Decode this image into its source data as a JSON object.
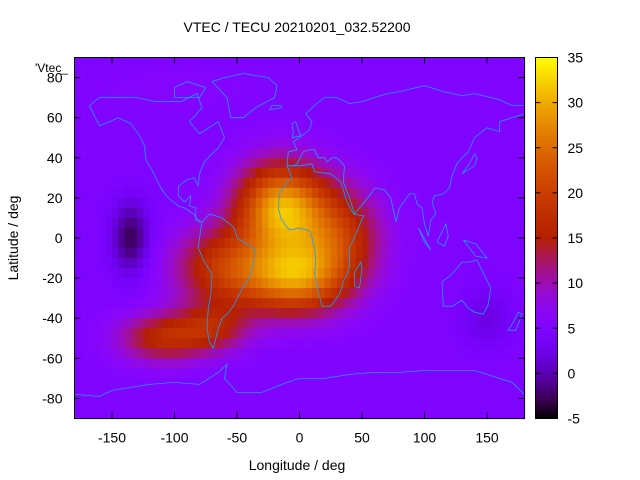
{
  "chart_data": {
    "type": "heatmap",
    "title": "VTEC / TECU 20210201_032.52200",
    "xlabel": "Longitude / deg",
    "ylabel": "Latitude / deg",
    "xlim": [
      -180,
      180
    ],
    "ylim": [
      -90,
      90
    ],
    "xticks": [
      "-150",
      "-100",
      "-50",
      "0",
      "50",
      "100",
      "150"
    ],
    "yticks": [
      "-80",
      "-60",
      "-40",
      "-20",
      "0",
      "20",
      "40",
      "60",
      "80"
    ],
    "colorbar": {
      "range": [
        -5,
        35
      ],
      "ticks": [
        "-5",
        "0",
        "5",
        "10",
        "15",
        "20",
        "25",
        "30",
        "35"
      ]
    },
    "legend_key": "'Vtec_",
    "background_level": 5,
    "features": [
      {
        "lon": -15,
        "lat": 15,
        "amp": 24,
        "slon": 35,
        "slat": 22
      },
      {
        "lon": -5,
        "lat": -20,
        "amp": 20,
        "slon": 40,
        "slat": 18
      },
      {
        "lon": -60,
        "lat": -15,
        "amp": 13,
        "slon": 40,
        "slat": 20
      },
      {
        "lon": 30,
        "lat": 0,
        "amp": 13,
        "slon": 35,
        "slat": 25
      },
      {
        "lon": -110,
        "lat": -50,
        "amp": 11,
        "slon": 35,
        "slat": 12
      },
      {
        "lon": -70,
        "lat": -45,
        "amp": 9,
        "slon": 30,
        "slat": 12
      },
      {
        "lon": -135,
        "lat": 0,
        "amp": -8,
        "slon": 15,
        "slat": 18
      },
      {
        "lon": 150,
        "lat": -40,
        "amp": -3,
        "slon": 20,
        "slat": 15
      },
      {
        "lon": -100,
        "lat": 75,
        "amp": 1,
        "slon": 60,
        "slat": 12
      }
    ],
    "coastlines": [
      [
        [
          -168,
          66
        ],
        [
          -160,
          70
        ],
        [
          -145,
          70
        ],
        [
          -130,
          70
        ],
        [
          -115,
          68
        ],
        [
          -95,
          68
        ],
        [
          -82,
          72
        ],
        [
          -78,
          65
        ],
        [
          -88,
          58
        ],
        [
          -80,
          52
        ],
        [
          -65,
          58
        ],
        [
          -60,
          50
        ],
        [
          -65,
          45
        ],
        [
          -70,
          42
        ],
        [
          -76,
          38
        ],
        [
          -80,
          32
        ],
        [
          -81,
          26
        ],
        [
          -84,
          30
        ],
        [
          -90,
          29
        ],
        [
          -97,
          26
        ],
        [
          -97,
          21
        ],
        [
          -92,
          18
        ],
        [
          -87,
          21
        ],
        [
          -88,
          16
        ],
        [
          -83,
          15
        ],
        [
          -83,
          9
        ],
        [
          -78,
          8
        ],
        [
          -80,
          8
        ],
        [
          -85,
          12
        ],
        [
          -92,
          15
        ],
        [
          -97,
          16
        ],
        [
          -105,
          20
        ],
        [
          -110,
          24
        ],
        [
          -115,
          30
        ],
        [
          -118,
          34
        ],
        [
          -123,
          39
        ],
        [
          -124,
          46
        ],
        [
          -128,
          51
        ],
        [
          -135,
          57
        ],
        [
          -145,
          60
        ],
        [
          -152,
          58
        ],
        [
          -160,
          56
        ],
        [
          -165,
          62
        ],
        [
          -168,
          66
        ]
      ],
      [
        [
          -78,
          8
        ],
        [
          -72,
          12
        ],
        [
          -62,
          10
        ],
        [
          -52,
          5
        ],
        [
          -50,
          0
        ],
        [
          -42,
          -3
        ],
        [
          -35,
          -6
        ],
        [
          -37,
          -12
        ],
        [
          -40,
          -20
        ],
        [
          -45,
          -24
        ],
        [
          -48,
          -28
        ],
        [
          -53,
          -34
        ],
        [
          -58,
          -38
        ],
        [
          -62,
          -40
        ],
        [
          -65,
          -45
        ],
        [
          -67,
          -50
        ],
        [
          -69,
          -55
        ],
        [
          -72,
          -52
        ],
        [
          -74,
          -45
        ],
        [
          -73,
          -35
        ],
        [
          -71,
          -28
        ],
        [
          -70,
          -18
        ],
        [
          -76,
          -12
        ],
        [
          -81,
          -5
        ],
        [
          -80,
          0
        ],
        [
          -78,
          8
        ]
      ],
      [
        [
          -10,
          36
        ],
        [
          -6,
          30
        ],
        [
          -10,
          28
        ],
        [
          -16,
          22
        ],
        [
          -17,
          15
        ],
        [
          -15,
          10
        ],
        [
          -12,
          7
        ],
        [
          -8,
          4
        ],
        [
          0,
          5
        ],
        [
          6,
          4
        ],
        [
          9,
          3
        ],
        [
          10,
          0
        ],
        [
          12,
          -5
        ],
        [
          13,
          -12
        ],
        [
          12,
          -18
        ],
        [
          15,
          -27
        ],
        [
          18,
          -34
        ],
        [
          25,
          -34
        ],
        [
          32,
          -28
        ],
        [
          35,
          -22
        ],
        [
          40,
          -15
        ],
        [
          40,
          -5
        ],
        [
          45,
          2
        ],
        [
          51,
          11
        ],
        [
          43,
          12
        ],
        [
          38,
          18
        ],
        [
          33,
          28
        ],
        [
          25,
          32
        ],
        [
          12,
          33
        ],
        [
          10,
          37
        ],
        [
          0,
          36
        ],
        [
          -10,
          36
        ]
      ],
      [
        [
          -10,
          36
        ],
        [
          -9,
          43
        ],
        [
          -2,
          44
        ],
        [
          -5,
          48
        ],
        [
          2,
          51
        ],
        [
          8,
          54
        ],
        [
          10,
          58
        ],
        [
          5,
          62
        ],
        [
          12,
          66
        ],
        [
          20,
          70
        ],
        [
          30,
          70
        ],
        [
          40,
          67
        ],
        [
          50,
          68
        ],
        [
          60,
          70
        ],
        [
          70,
          72
        ],
        [
          80,
          73
        ],
        [
          100,
          76
        ],
        [
          115,
          73
        ],
        [
          130,
          71
        ],
        [
          140,
          72
        ],
        [
          160,
          69
        ],
        [
          170,
          66
        ],
        [
          180,
          66
        ]
      ],
      [
        [
          180,
          62
        ],
        [
          170,
          60
        ],
        [
          160,
          58
        ],
        [
          160,
          53
        ],
        [
          150,
          55
        ],
        [
          140,
          50
        ],
        [
          135,
          43
        ],
        [
          130,
          40
        ],
        [
          126,
          37
        ],
        [
          122,
          31
        ],
        [
          120,
          25
        ],
        [
          115,
          22
        ],
        [
          108,
          21
        ],
        [
          106,
          18
        ],
        [
          109,
          12
        ],
        [
          105,
          9
        ],
        [
          103,
          1
        ],
        [
          100,
          7
        ],
        [
          98,
          15
        ],
        [
          94,
          17
        ],
        [
          92,
          22
        ],
        [
          88,
          22
        ],
        [
          80,
          15
        ],
        [
          77,
          8
        ],
        [
          73,
          20
        ],
        [
          68,
          24
        ],
        [
          60,
          25
        ],
        [
          57,
          22
        ],
        [
          52,
          18
        ],
        [
          44,
          12
        ],
        [
          40,
          20
        ],
        [
          35,
          28
        ],
        [
          36,
          36
        ],
        [
          30,
          40
        ],
        [
          26,
          40
        ],
        [
          22,
          38
        ],
        [
          20,
          40
        ],
        [
          15,
          40
        ],
        [
          12,
          44
        ],
        [
          8,
          44
        ],
        [
          3,
          43
        ],
        [
          -2,
          37
        ],
        [
          -5,
          36
        ],
        [
          -10,
          36
        ]
      ],
      [
        [
          114,
          -22
        ],
        [
          122,
          -18
        ],
        [
          130,
          -12
        ],
        [
          136,
          -12
        ],
        [
          142,
          -11
        ],
        [
          145,
          -15
        ],
        [
          153,
          -25
        ],
        [
          151,
          -33
        ],
        [
          147,
          -38
        ],
        [
          140,
          -37
        ],
        [
          135,
          -35
        ],
        [
          130,
          -31
        ],
        [
          122,
          -34
        ],
        [
          115,
          -34
        ],
        [
          114,
          -22
        ]
      ],
      [
        [
          -180,
          -78
        ],
        [
          -160,
          -79
        ],
        [
          -150,
          -76
        ],
        [
          -140,
          -75
        ],
        [
          -120,
          -73
        ],
        [
          -100,
          -72
        ],
        [
          -80,
          -73
        ],
        [
          -65,
          -67
        ],
        [
          -58,
          -63
        ],
        [
          -60,
          -70
        ],
        [
          -50,
          -77
        ],
        [
          -30,
          -77
        ],
        [
          -10,
          -72
        ],
        [
          0,
          -70
        ],
        [
          20,
          -70
        ],
        [
          40,
          -68
        ],
        [
          60,
          -67
        ],
        [
          80,
          -67
        ],
        [
          100,
          -66
        ],
        [
          120,
          -66
        ],
        [
          140,
          -66
        ],
        [
          160,
          -70
        ],
        [
          170,
          -72
        ],
        [
          180,
          -78
        ]
      ],
      [
        [
          -55,
          60
        ],
        [
          -45,
          60
        ],
        [
          -35,
          65
        ],
        [
          -20,
          70
        ],
        [
          -18,
          76
        ],
        [
          -25,
          80
        ],
        [
          -45,
          82
        ],
        [
          -60,
          80
        ],
        [
          -70,
          78
        ],
        [
          -58,
          70
        ],
        [
          -55,
          60
        ]
      ],
      [
        [
          48,
          -25
        ],
        [
          50,
          -15
        ],
        [
          49,
          -12
        ],
        [
          44,
          -17
        ],
        [
          44,
          -24
        ],
        [
          48,
          -25
        ]
      ],
      [
        [
          -6,
          50
        ],
        [
          1,
          51
        ],
        [
          -1,
          54
        ],
        [
          -3,
          58
        ],
        [
          -6,
          57
        ],
        [
          -5,
          53
        ],
        [
          -6,
          50
        ]
      ],
      [
        [
          130,
          32
        ],
        [
          135,
          34
        ],
        [
          140,
          36
        ],
        [
          142,
          40
        ],
        [
          140,
          42
        ],
        [
          136,
          37
        ],
        [
          130,
          32
        ]
      ],
      [
        [
          95,
          5
        ],
        [
          105,
          -6
        ],
        [
          100,
          -2
        ],
        [
          95,
          5
        ]
      ],
      [
        [
          110,
          -2
        ],
        [
          117,
          7
        ],
        [
          119,
          1
        ],
        [
          116,
          -4
        ],
        [
          110,
          -2
        ]
      ],
      [
        [
          131,
          -1
        ],
        [
          141,
          -3
        ],
        [
          150,
          -10
        ],
        [
          141,
          -9
        ],
        [
          131,
          -1
        ]
      ],
      [
        [
          172,
          -41
        ],
        [
          175,
          -37
        ],
        [
          178,
          -38
        ],
        [
          173,
          -46
        ],
        [
          167,
          -46
        ],
        [
          172,
          -41
        ]
      ],
      [
        [
          -24,
          64
        ],
        [
          -14,
          65
        ],
        [
          -15,
          66
        ],
        [
          -22,
          66
        ],
        [
          -24,
          64
        ]
      ],
      [
        [
          -100,
          70
        ],
        [
          -80,
          70
        ],
        [
          -75,
          75
        ],
        [
          -90,
          78
        ],
        [
          -100,
          75
        ],
        [
          -100,
          70
        ]
      ]
    ]
  }
}
